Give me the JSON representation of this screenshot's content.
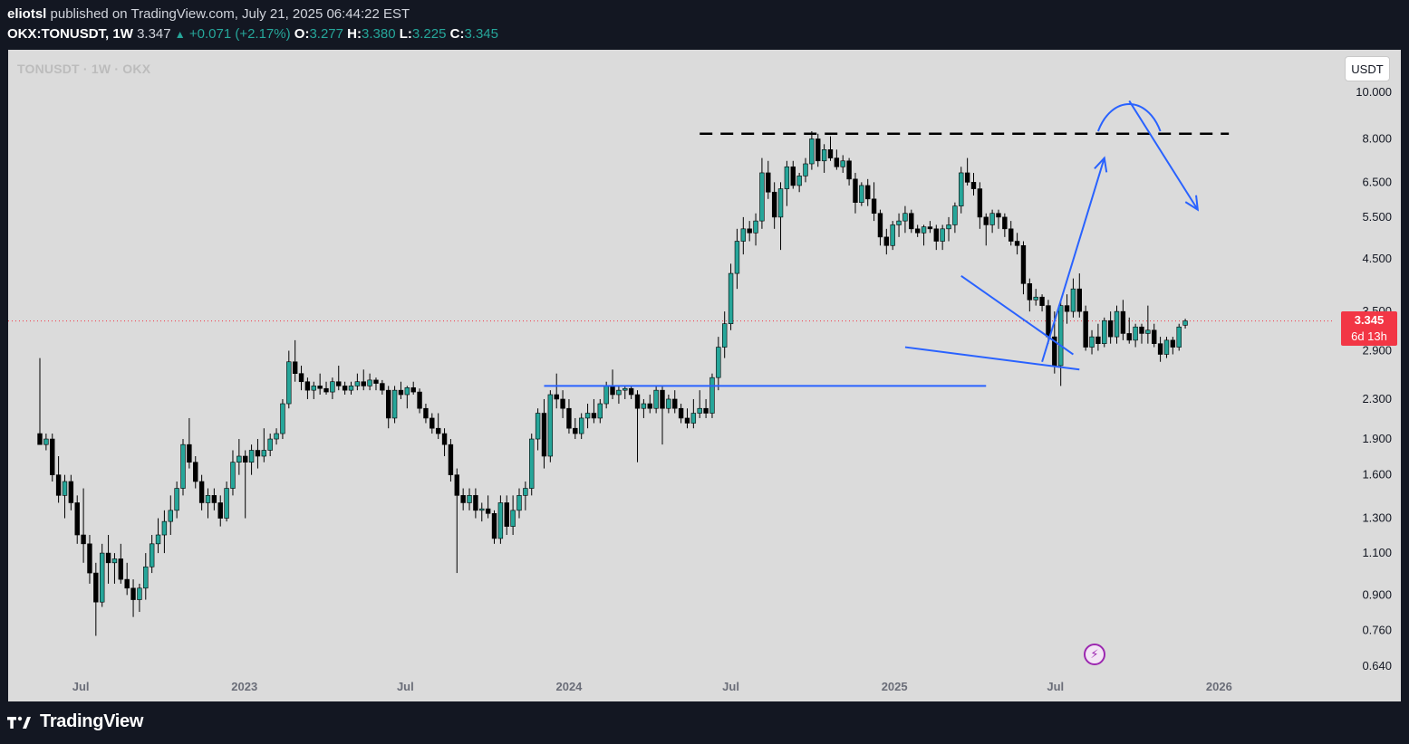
{
  "header": {
    "author": "eliotsl",
    "published_text": "published on TradingView.com, July 21, 2025 06:44:22 EST",
    "symbol": "OKX:TONUSDT, 1W",
    "last": "3.347",
    "change": "+0.071 (+2.17%)",
    "open_label": "O:",
    "open": "3.277",
    "high_label": "H:",
    "high": "3.380",
    "low_label": "L:",
    "low": "3.225",
    "close_label": "C:",
    "close": "3.345"
  },
  "watermark": "TONUSDT · 1W · OKX",
  "currency_button": "USDT",
  "price_tag": {
    "price": "3.345",
    "countdown": "6d 13h"
  },
  "footer": {
    "brand": "TradingView"
  },
  "colors": {
    "up": "#26a69a",
    "down": "#000000",
    "drawing": "#2962ff",
    "price_line": "#f23645",
    "background": "#dbdbdb"
  },
  "chart_data": {
    "type": "candlestick",
    "y_scale": "log",
    "y_ticks": [
      "10.000",
      "8.000",
      "6.500",
      "5.500",
      "4.500",
      "3.500",
      "2.900",
      "2.300",
      "1.900",
      "1.600",
      "1.300",
      "1.100",
      "0.900",
      "0.760",
      "0.640"
    ],
    "y_tick_values": [
      10,
      8,
      6.5,
      5.5,
      4.5,
      3.5,
      2.9,
      2.3,
      1.9,
      1.6,
      1.3,
      1.1,
      0.9,
      0.76,
      0.64
    ],
    "x_ticks": [
      {
        "label": "Jul",
        "date": "2022-07-01"
      },
      {
        "label": "2023",
        "date": "2023-01-01"
      },
      {
        "label": "Jul",
        "date": "2023-07-01"
      },
      {
        "label": "2024",
        "date": "2024-01-01"
      },
      {
        "label": "Jul",
        "date": "2024-07-01"
      },
      {
        "label": "2025",
        "date": "2025-01-01"
      },
      {
        "label": "Jul",
        "date": "2025-07-01"
      },
      {
        "label": "2026",
        "date": "2026-01-01"
      }
    ],
    "current_price": 3.345,
    "candles": [
      [
        1.95,
        2.8,
        1.85,
        1.85
      ],
      [
        1.85,
        1.95,
        1.8,
        1.9
      ],
      [
        1.9,
        1.95,
        1.55,
        1.6
      ],
      [
        1.6,
        1.75,
        1.4,
        1.45
      ],
      [
        1.45,
        1.6,
        1.3,
        1.55
      ],
      [
        1.55,
        1.6,
        1.35,
        1.4
      ],
      [
        1.4,
        1.45,
        1.15,
        1.2
      ],
      [
        1.2,
        1.5,
        1.05,
        1.15
      ],
      [
        1.15,
        1.2,
        0.95,
        1.0
      ],
      [
        1.0,
        1.05,
        0.74,
        0.87
      ],
      [
        0.87,
        1.15,
        0.85,
        1.1
      ],
      [
        1.1,
        1.2,
        0.95,
        1.05
      ],
      [
        1.05,
        1.1,
        0.95,
        1.07
      ],
      [
        1.07,
        1.15,
        0.95,
        0.97
      ],
      [
        0.97,
        1.05,
        0.9,
        0.93
      ],
      [
        0.93,
        0.97,
        0.81,
        0.88
      ],
      [
        0.88,
        0.95,
        0.83,
        0.93
      ],
      [
        0.93,
        1.1,
        0.88,
        1.03
      ],
      [
        1.03,
        1.2,
        1.0,
        1.15
      ],
      [
        1.15,
        1.3,
        1.1,
        1.2
      ],
      [
        1.2,
        1.35,
        1.1,
        1.28
      ],
      [
        1.28,
        1.45,
        1.2,
        1.35
      ],
      [
        1.35,
        1.55,
        1.3,
        1.5
      ],
      [
        1.5,
        1.9,
        1.45,
        1.85
      ],
      [
        1.85,
        2.1,
        1.65,
        1.7
      ],
      [
        1.7,
        1.75,
        1.5,
        1.55
      ],
      [
        1.55,
        1.6,
        1.35,
        1.4
      ],
      [
        1.4,
        1.5,
        1.3,
        1.45
      ],
      [
        1.45,
        1.5,
        1.35,
        1.4
      ],
      [
        1.4,
        1.45,
        1.25,
        1.3
      ],
      [
        1.3,
        1.55,
        1.28,
        1.5
      ],
      [
        1.5,
        1.8,
        1.45,
        1.7
      ],
      [
        1.7,
        1.9,
        1.6,
        1.75
      ],
      [
        1.75,
        1.8,
        1.3,
        1.7
      ],
      [
        1.7,
        1.85,
        1.6,
        1.8
      ],
      [
        1.8,
        1.9,
        1.65,
        1.75
      ],
      [
        1.75,
        2.0,
        1.7,
        1.8
      ],
      [
        1.8,
        1.95,
        1.75,
        1.9
      ],
      [
        1.9,
        2.0,
        1.85,
        1.95
      ],
      [
        1.95,
        2.3,
        1.9,
        2.25
      ],
      [
        2.25,
        2.9,
        2.2,
        2.75
      ],
      [
        2.75,
        3.05,
        2.5,
        2.6
      ],
      [
        2.6,
        2.7,
        2.4,
        2.5
      ],
      [
        2.5,
        2.55,
        2.3,
        2.4
      ],
      [
        2.4,
        2.5,
        2.3,
        2.45
      ],
      [
        2.45,
        2.6,
        2.35,
        2.42
      ],
      [
        2.42,
        2.5,
        2.35,
        2.38
      ],
      [
        2.38,
        2.55,
        2.3,
        2.5
      ],
      [
        2.5,
        2.7,
        2.4,
        2.45
      ],
      [
        2.45,
        2.5,
        2.35,
        2.4
      ],
      [
        2.4,
        2.5,
        2.35,
        2.45
      ],
      [
        2.45,
        2.6,
        2.4,
        2.5
      ],
      [
        2.5,
        2.65,
        2.4,
        2.45
      ],
      [
        2.45,
        2.6,
        2.4,
        2.52
      ],
      [
        2.52,
        2.55,
        2.4,
        2.48
      ],
      [
        2.48,
        2.52,
        2.35,
        2.4
      ],
      [
        2.4,
        2.45,
        2.0,
        2.1
      ],
      [
        2.1,
        2.45,
        2.05,
        2.4
      ],
      [
        2.4,
        2.5,
        2.3,
        2.35
      ],
      [
        2.35,
        2.45,
        2.2,
        2.43
      ],
      [
        2.43,
        2.5,
        2.35,
        2.38
      ],
      [
        2.38,
        2.42,
        2.15,
        2.2
      ],
      [
        2.2,
        2.25,
        2.05,
        2.1
      ],
      [
        2.1,
        2.15,
        1.95,
        2.0
      ],
      [
        2.0,
        2.15,
        1.9,
        1.95
      ],
      [
        1.95,
        2.0,
        1.75,
        1.85
      ],
      [
        1.85,
        1.9,
        1.55,
        1.6
      ],
      [
        1.6,
        1.65,
        1.0,
        1.45
      ],
      [
        1.45,
        1.5,
        1.35,
        1.4
      ],
      [
        1.4,
        1.5,
        1.35,
        1.45
      ],
      [
        1.45,
        1.5,
        1.3,
        1.35
      ],
      [
        1.35,
        1.4,
        1.28,
        1.36
      ],
      [
        1.36,
        1.45,
        1.3,
        1.33
      ],
      [
        1.33,
        1.35,
        1.15,
        1.18
      ],
      [
        1.18,
        1.45,
        1.15,
        1.4
      ],
      [
        1.4,
        1.45,
        1.2,
        1.25
      ],
      [
        1.25,
        1.45,
        1.2,
        1.35
      ],
      [
        1.35,
        1.5,
        1.3,
        1.45
      ],
      [
        1.45,
        1.55,
        1.35,
        1.5
      ],
      [
        1.5,
        1.95,
        1.45,
        1.9
      ],
      [
        1.9,
        2.2,
        1.8,
        2.15
      ],
      [
        2.15,
        2.3,
        1.65,
        1.75
      ],
      [
        1.75,
        2.4,
        1.7,
        2.35
      ],
      [
        2.35,
        2.6,
        2.2,
        2.3
      ],
      [
        2.3,
        2.4,
        2.1,
        2.2
      ],
      [
        2.2,
        2.3,
        1.95,
        2.0
      ],
      [
        2.0,
        2.1,
        1.9,
        1.95
      ],
      [
        1.95,
        2.15,
        1.9,
        2.1
      ],
      [
        2.1,
        2.25,
        2.0,
        2.15
      ],
      [
        2.15,
        2.3,
        2.05,
        2.1
      ],
      [
        2.1,
        2.3,
        2.05,
        2.25
      ],
      [
        2.25,
        2.5,
        2.2,
        2.45
      ],
      [
        2.45,
        2.65,
        2.3,
        2.35
      ],
      [
        2.35,
        2.45,
        2.25,
        2.4
      ],
      [
        2.4,
        2.45,
        2.3,
        2.42
      ],
      [
        2.42,
        2.45,
        2.3,
        2.35
      ],
      [
        2.35,
        2.4,
        1.7,
        2.2
      ],
      [
        2.2,
        2.3,
        2.1,
        2.25
      ],
      [
        2.25,
        2.35,
        2.15,
        2.2
      ],
      [
        2.2,
        2.45,
        2.15,
        2.4
      ],
      [
        2.4,
        2.45,
        1.85,
        2.2
      ],
      [
        2.2,
        2.35,
        2.15,
        2.3
      ],
      [
        2.3,
        2.4,
        2.15,
        2.2
      ],
      [
        2.2,
        2.25,
        2.05,
        2.1
      ],
      [
        2.1,
        2.2,
        2.0,
        2.05
      ],
      [
        2.05,
        2.3,
        2.0,
        2.15
      ],
      [
        2.15,
        2.4,
        2.1,
        2.2
      ],
      [
        2.2,
        2.3,
        2.1,
        2.15
      ],
      [
        2.15,
        2.6,
        2.1,
        2.55
      ],
      [
        2.55,
        3.1,
        2.4,
        2.95
      ],
      [
        2.95,
        3.5,
        2.8,
        3.3
      ],
      [
        3.3,
        4.4,
        3.2,
        4.2
      ],
      [
        4.2,
        5.2,
        3.9,
        4.9
      ],
      [
        4.9,
        5.5,
        4.6,
        5.2
      ],
      [
        5.2,
        5.4,
        4.9,
        5.1
      ],
      [
        5.1,
        5.6,
        4.8,
        5.4
      ],
      [
        5.4,
        7.3,
        5.2,
        6.8
      ],
      [
        6.8,
        7.2,
        6.0,
        6.2
      ],
      [
        6.2,
        6.5,
        5.2,
        5.5
      ],
      [
        5.5,
        6.5,
        4.7,
        6.3
      ],
      [
        6.3,
        7.2,
        5.8,
        7.0
      ],
      [
        7.0,
        7.2,
        6.3,
        6.4
      ],
      [
        6.4,
        6.8,
        6.2,
        6.7
      ],
      [
        6.7,
        7.3,
        6.5,
        7.1
      ],
      [
        7.1,
        8.3,
        6.9,
        8.0
      ],
      [
        8.0,
        8.2,
        7.0,
        7.2
      ],
      [
        7.2,
        7.8,
        6.8,
        7.6
      ],
      [
        7.6,
        8.1,
        7.2,
        7.3
      ],
      [
        7.3,
        7.6,
        6.9,
        7.0
      ],
      [
        7.0,
        7.4,
        6.8,
        7.2
      ],
      [
        7.2,
        7.3,
        6.4,
        6.6
      ],
      [
        6.6,
        6.8,
        5.6,
        5.9
      ],
      [
        5.9,
        6.5,
        5.8,
        6.4
      ],
      [
        6.4,
        6.6,
        5.8,
        6.0
      ],
      [
        6.0,
        6.5,
        5.4,
        5.6
      ],
      [
        5.6,
        5.7,
        4.8,
        5.0
      ],
      [
        5.0,
        5.2,
        4.6,
        4.8
      ],
      [
        4.8,
        5.4,
        4.7,
        5.3
      ],
      [
        5.3,
        5.6,
        5.0,
        5.4
      ],
      [
        5.4,
        5.8,
        5.1,
        5.6
      ],
      [
        5.6,
        5.7,
        5.1,
        5.2
      ],
      [
        5.2,
        5.3,
        5.0,
        5.1
      ],
      [
        5.1,
        5.3,
        4.8,
        5.25
      ],
      [
        5.25,
        5.4,
        5.1,
        5.2
      ],
      [
        5.2,
        5.3,
        4.7,
        4.9
      ],
      [
        4.9,
        5.3,
        4.7,
        5.2
      ],
      [
        5.2,
        5.5,
        4.9,
        5.3
      ],
      [
        5.3,
        5.9,
        5.1,
        5.8
      ],
      [
        5.8,
        7.0,
        5.6,
        6.8
      ],
      [
        6.8,
        7.3,
        6.4,
        6.5
      ],
      [
        6.5,
        6.8,
        6.1,
        6.3
      ],
      [
        6.3,
        6.5,
        5.2,
        5.5
      ],
      [
        5.5,
        5.6,
        4.8,
        5.3
      ],
      [
        5.3,
        5.7,
        5.1,
        5.6
      ],
      [
        5.6,
        5.7,
        5.2,
        5.5
      ],
      [
        5.5,
        5.6,
        5.0,
        5.2
      ],
      [
        5.2,
        5.4,
        4.8,
        4.9
      ],
      [
        4.9,
        5.1,
        4.6,
        4.8
      ],
      [
        4.8,
        4.9,
        3.8,
        4.0
      ],
      [
        4.0,
        4.1,
        3.5,
        3.7
      ],
      [
        3.7,
        3.9,
        3.6,
        3.75
      ],
      [
        3.75,
        3.8,
        3.5,
        3.6
      ],
      [
        3.6,
        3.7,
        3.0,
        3.1
      ],
      [
        3.1,
        3.5,
        2.6,
        2.7
      ],
      [
        2.7,
        3.7,
        2.45,
        3.6
      ],
      [
        3.6,
        3.8,
        3.3,
        3.5
      ],
      [
        3.5,
        4.1,
        3.4,
        3.9
      ],
      [
        3.9,
        4.2,
        3.4,
        3.5
      ],
      [
        3.5,
        3.6,
        2.9,
        2.95
      ],
      [
        2.95,
        3.2,
        2.85,
        3.1
      ],
      [
        3.1,
        3.3,
        2.9,
        3.0
      ],
      [
        3.0,
        3.4,
        2.95,
        3.35
      ],
      [
        3.35,
        3.5,
        3.0,
        3.1
      ],
      [
        3.1,
        3.6,
        3.0,
        3.5
      ],
      [
        3.5,
        3.7,
        3.05,
        3.15
      ],
      [
        3.15,
        3.4,
        3.0,
        3.05
      ],
      [
        3.05,
        3.3,
        2.95,
        3.25
      ],
      [
        3.25,
        3.3,
        3.0,
        3.15
      ],
      [
        3.15,
        3.6,
        3.0,
        3.2
      ],
      [
        3.2,
        3.3,
        2.95,
        3.0
      ],
      [
        3.0,
        3.1,
        2.75,
        2.85
      ],
      [
        2.85,
        3.1,
        2.8,
        3.05
      ],
      [
        3.05,
        3.1,
        2.85,
        2.95
      ],
      [
        2.95,
        3.3,
        2.9,
        3.25
      ],
      [
        3.277,
        3.38,
        3.225,
        3.345
      ]
    ],
    "annotations": {
      "resistance_level": 8.2,
      "support_level": 2.45,
      "wedge_upper_line": [
        {
          "date": "2025-03-17",
          "price": 4.15
        },
        {
          "date": "2025-07-21",
          "price": 2.85
        }
      ],
      "wedge_lower_line": [
        {
          "date": "2025-01-13",
          "price": 2.95
        },
        {
          "date": "2025-07-28",
          "price": 2.65
        }
      ],
      "projection_up": [
        {
          "date": "2025-06-16",
          "price": 2.75
        },
        {
          "date": "2025-08-25",
          "price": 7.3
        }
      ],
      "projection_down": [
        {
          "date": "2025-09-22",
          "price": 9.6
        },
        {
          "date": "2025-12-08",
          "price": 5.7
        }
      ]
    }
  }
}
